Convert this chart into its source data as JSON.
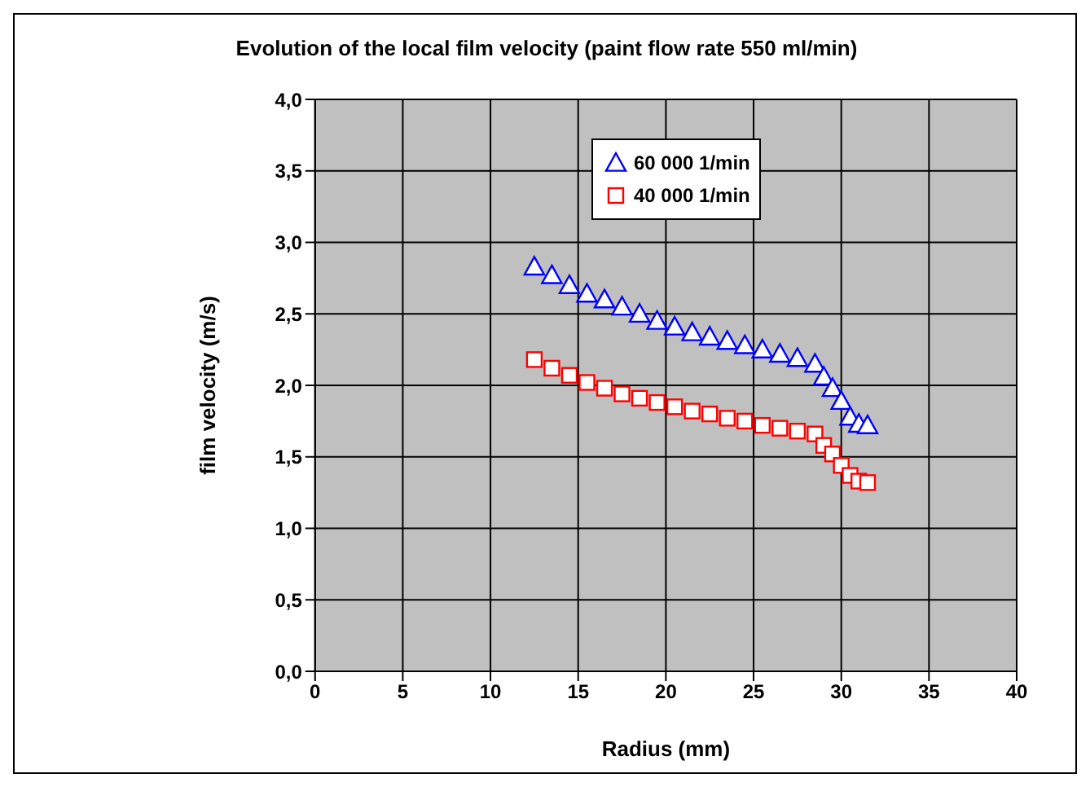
{
  "chart_data": {
    "type": "scatter",
    "title": "Evolution of the local film velocity (paint flow rate 550 ml/min)",
    "xlabel": "Radius (mm)",
    "ylabel": "film velocity (m/s)",
    "xlim": [
      0,
      40
    ],
    "xticks": [
      0,
      5,
      10,
      15,
      20,
      25,
      30,
      35,
      40
    ],
    "ylim": [
      0,
      4
    ],
    "yticks": [
      {
        "value": 0,
        "label": "0,0"
      },
      {
        "value": 0.5,
        "label": "0,5"
      },
      {
        "value": 1,
        "label": "1,0"
      },
      {
        "value": 1.5,
        "label": "1,5"
      },
      {
        "value": 2,
        "label": "2,0"
      },
      {
        "value": 2.5,
        "label": "2,5"
      },
      {
        "value": 3,
        "label": "3,0"
      },
      {
        "value": 3.5,
        "label": "3,5"
      },
      {
        "value": 4,
        "label": "4,0"
      }
    ],
    "grid": true,
    "legend": "top right",
    "series": [
      {
        "name": "60 000 1/min",
        "color": "#0000ff",
        "marker": "triangle",
        "x": [
          12.5,
          13.5,
          14.5,
          15.5,
          16.5,
          17.5,
          18.5,
          19.5,
          20.5,
          21.5,
          22.5,
          23.5,
          24.5,
          25.5,
          26.5,
          27.5,
          28.5,
          29,
          29.5,
          30,
          30.5,
          31,
          31.5
        ],
        "values": [
          2.83,
          2.77,
          2.7,
          2.64,
          2.6,
          2.55,
          2.5,
          2.45,
          2.41,
          2.37,
          2.34,
          2.31,
          2.28,
          2.25,
          2.22,
          2.19,
          2.15,
          2.06,
          1.98,
          1.89,
          1.78,
          1.73,
          1.72
        ]
      },
      {
        "name": "40 000 1/min",
        "color": "#ff0000",
        "marker": "square",
        "x": [
          12.5,
          13.5,
          14.5,
          15.5,
          16.5,
          17.5,
          18.5,
          19.5,
          20.5,
          21.5,
          22.5,
          23.5,
          24.5,
          25.5,
          26.5,
          27.5,
          28.5,
          29,
          29.5,
          30,
          30.5,
          31,
          31.5
        ],
        "values": [
          2.18,
          2.12,
          2.07,
          2.02,
          1.98,
          1.94,
          1.91,
          1.88,
          1.85,
          1.82,
          1.8,
          1.77,
          1.75,
          1.72,
          1.7,
          1.68,
          1.66,
          1.58,
          1.52,
          1.44,
          1.37,
          1.33,
          1.32
        ]
      }
    ]
  }
}
